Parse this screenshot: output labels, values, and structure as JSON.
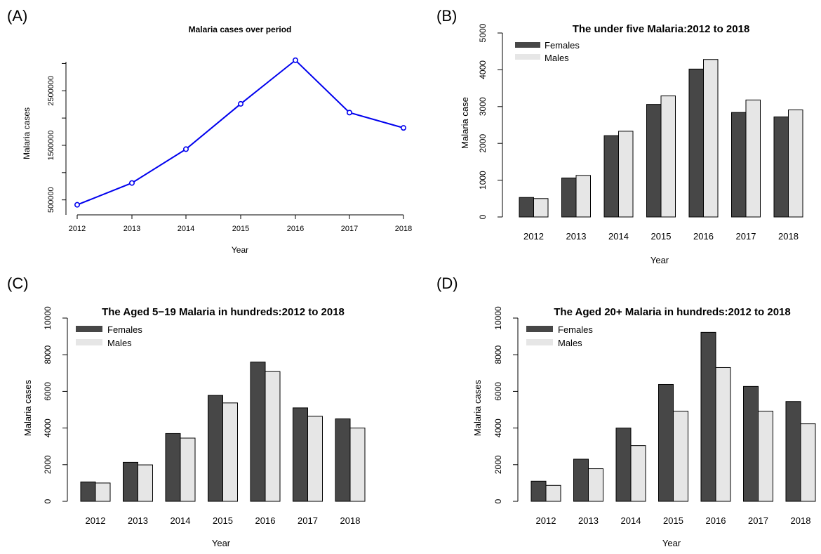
{
  "chart_data": [
    {
      "panel_label": "(A)",
      "type": "line",
      "title": "Malaria cases over period",
      "xlabel": "Year",
      "ylabel": "Malaria cases",
      "x": [
        "2012",
        "2013",
        "2014",
        "2015",
        "2016",
        "2017",
        "2018"
      ],
      "yticks": [
        500000,
        1500000,
        2500000
      ],
      "ylim": [
        380000,
        3160000
      ],
      "series": [
        {
          "values": [
            410000,
            810000,
            1430000,
            2260000,
            3060000,
            2100000,
            1820000
          ]
        }
      ],
      "color": "#0000ee",
      "grid": false
    },
    {
      "panel_label": "(B)",
      "type": "bar",
      "title": "The  under five Malaria:2012 to 2018",
      "xlabel": "Year",
      "ylabel": "Malaria case",
      "categories": [
        "2012",
        "2013",
        "2014",
        "2015",
        "2016",
        "2017",
        "2018"
      ],
      "yticks": [
        0,
        1000,
        2000,
        3000,
        4000,
        5000
      ],
      "ylim": [
        0,
        5000
      ],
      "legend_position": "top-left",
      "series": [
        {
          "name": "Females",
          "color": "#474747",
          "values": [
            530,
            1060,
            2210,
            3060,
            4020,
            2840,
            2720
          ]
        },
        {
          "name": "Males",
          "color": "#e6e6e6",
          "values": [
            500,
            1130,
            2330,
            3290,
            4280,
            3180,
            2910
          ]
        }
      ],
      "grid": false
    },
    {
      "panel_label": "(C)",
      "type": "bar",
      "title": "The  Aged 5−19 Malaria in hundreds:2012 to 2018",
      "xlabel": "Year",
      "ylabel": "Malaria cases",
      "categories": [
        "2012",
        "2013",
        "2014",
        "2015",
        "2016",
        "2017",
        "2018"
      ],
      "yticks": [
        0,
        2000,
        4000,
        6000,
        8000,
        10000
      ],
      "ylim": [
        0,
        10000
      ],
      "legend_position": "top-left",
      "series": [
        {
          "name": "Females",
          "color": "#474747",
          "values": [
            1060,
            2130,
            3700,
            5780,
            7600,
            5100,
            4500
          ]
        },
        {
          "name": "Males",
          "color": "#e6e6e6",
          "values": [
            1000,
            1990,
            3450,
            5370,
            7080,
            4640,
            4000
          ]
        }
      ],
      "grid": false
    },
    {
      "panel_label": "(D)",
      "type": "bar",
      "title": "The  Aged 20+ Malaria in hundreds:2012 to 2018",
      "xlabel": "Year",
      "ylabel": "Malaria cases",
      "categories": [
        "2012",
        "2013",
        "2014",
        "2015",
        "2016",
        "2017",
        "2018"
      ],
      "yticks": [
        0,
        2000,
        4000,
        6000,
        8000,
        10000
      ],
      "ylim": [
        0,
        10000
      ],
      "legend_position": "top-left",
      "series": [
        {
          "name": "Females",
          "color": "#474747",
          "values": [
            1100,
            2300,
            4000,
            6380,
            9220,
            6270,
            5450
          ]
        },
        {
          "name": "Males",
          "color": "#e6e6e6",
          "values": [
            870,
            1780,
            3040,
            4920,
            7300,
            4920,
            4230
          ]
        }
      ],
      "grid": false
    }
  ]
}
